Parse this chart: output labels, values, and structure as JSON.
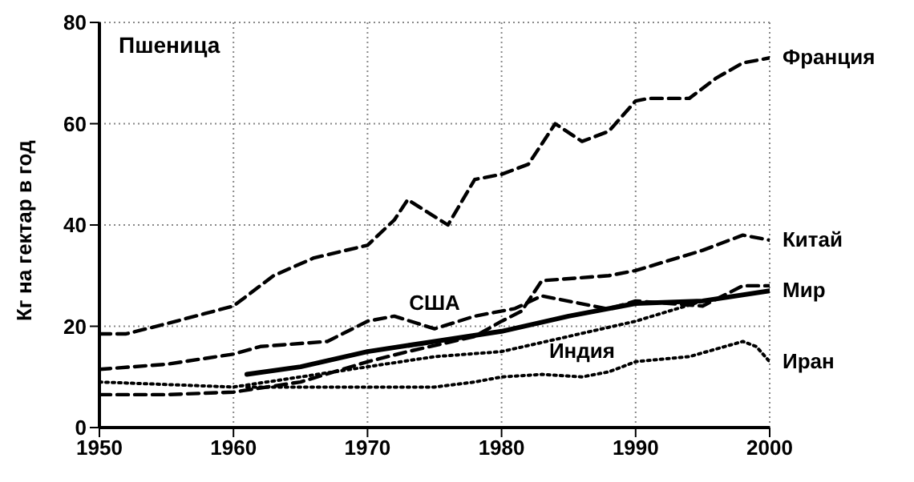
{
  "chart_data": {
    "type": "line",
    "title": "Пшеница",
    "ylabel": "Кг на гектар в год",
    "xlim": [
      1950,
      2000
    ],
    "ylim": [
      0,
      80
    ],
    "xticks": [
      1950,
      1960,
      1970,
      1980,
      1990,
      2000
    ],
    "yticks": [
      0,
      20,
      40,
      60,
      80
    ],
    "grid": true,
    "marker": "none",
    "series": [
      {
        "name": "Франция",
        "color": "#000000",
        "line_style": "dashed",
        "x": [
          1950,
          1952,
          1955,
          1960,
          1963,
          1966,
          1970,
          1972,
          1973,
          1976,
          1978,
          1980,
          1982,
          1984,
          1986,
          1988,
          1990,
          1991,
          1994,
          1996,
          1998,
          2000
        ],
        "values": [
          18.5,
          18.5,
          20.5,
          24,
          30,
          33.5,
          36,
          41,
          45,
          40,
          49,
          50,
          52,
          60,
          56.5,
          58.5,
          64.5,
          65,
          65,
          69,
          72,
          73
        ]
      },
      {
        "name": "Китай",
        "color": "#000000",
        "line_style": "dashed",
        "x": [
          1950,
          1955,
          1960,
          1965,
          1970,
          1973,
          1978,
          1980,
          1981.5,
          1983,
          1988,
          1990,
          1995,
          1998,
          2000
        ],
        "values": [
          6.5,
          6.5,
          7,
          9,
          13,
          15,
          18,
          21,
          23,
          29,
          30,
          31,
          35,
          38,
          37
        ]
      },
      {
        "color": "#000000",
        "line_style": "dashed",
        "x": [
          1950,
          1955,
          1960,
          1962,
          1967,
          1970,
          1972,
          1975,
          1978,
          1981,
          1983,
          1988,
          1990,
          1995,
          1998,
          2000
        ],
        "values": [
          11.5,
          12.5,
          14.5,
          16,
          17,
          21,
          22,
          19.5,
          22,
          23.5,
          26,
          23.4,
          25,
          24,
          28,
          28
        ]
      },
      {
        "name": "Мир",
        "color": "#000000",
        "line_style": "solid",
        "x": [
          1961,
          1965,
          1970,
          1975,
          1980,
          1985,
          1990,
          1995,
          2000
        ],
        "values": [
          10.5,
          12,
          15,
          17,
          19,
          22,
          24.5,
          25,
          27
        ]
      },
      {
        "color": "#000000",
        "line_style": "dotted",
        "x": [
          1950,
          1955,
          1960,
          1965,
          1970,
          1975,
          1980,
          1985,
          1990,
          1995,
          2000
        ],
        "values": [
          9,
          8.5,
          8,
          10,
          12,
          14,
          15,
          18,
          21,
          25,
          27
        ]
      },
      {
        "name": "Иран",
        "color": "#000000",
        "line_style": "dotted",
        "x": [
          1961,
          1965,
          1970,
          1975,
          1978,
          1980,
          1983,
          1986,
          1988,
          1990,
          1994,
          1998,
          1999,
          2000
        ],
        "values": [
          8,
          8,
          8,
          8,
          9,
          10,
          10.5,
          10,
          11,
          13,
          14,
          17,
          16,
          13
        ]
      }
    ],
    "annotations": [
      {
        "text": "США",
        "x": 1975,
        "y": 19.5
      },
      {
        "text": "Индия",
        "x": 1986,
        "y": 10
      }
    ]
  }
}
